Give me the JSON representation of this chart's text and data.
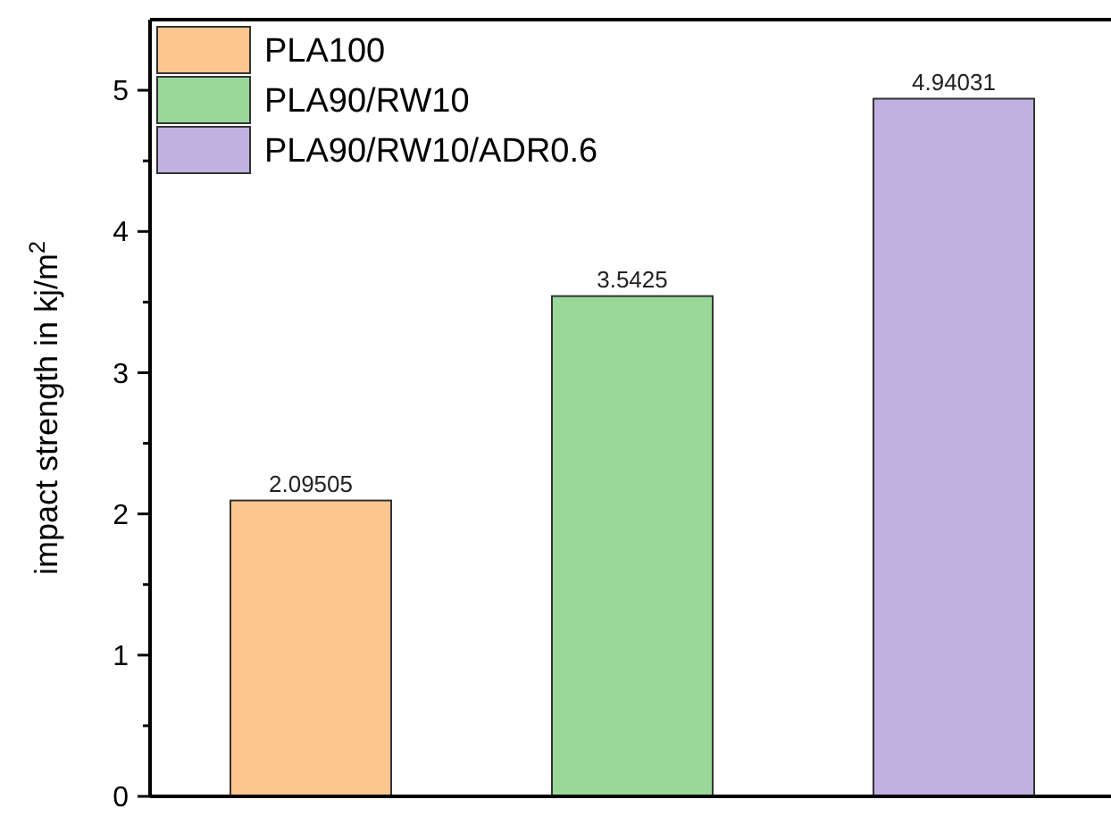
{
  "chart_data": {
    "type": "bar",
    "categories": [
      null,
      null,
      null
    ],
    "series": [
      {
        "name": "PLA100",
        "color": "#fdc68f",
        "values": [
          2.09505,
          null,
          null
        ]
      },
      {
        "name": "PLA90/RW10",
        "color": "#9ad89a",
        "values": [
          null,
          3.5425,
          null
        ]
      },
      {
        "name": "PLA90/RW10/ADR0.6",
        "color": "#c0b1e0",
        "values": [
          null,
          null,
          4.94031
        ]
      }
    ],
    "ylabel": "impact strength in kj/m$^{2}$",
    "ylim": [
      0,
      5.5
    ],
    "yticks": [
      0,
      {
        "value": 0.5,
        "label": null
      },
      1,
      {
        "value": 1.5,
        "label": null
      },
      2,
      {
        "value": 2.5,
        "label": null
      },
      3,
      {
        "value": 3.5,
        "label": null
      },
      4,
      {
        "value": 4.5,
        "label": null
      },
      5
    ],
    "data_labels": true,
    "legend": "top left",
    "grid": false
  }
}
